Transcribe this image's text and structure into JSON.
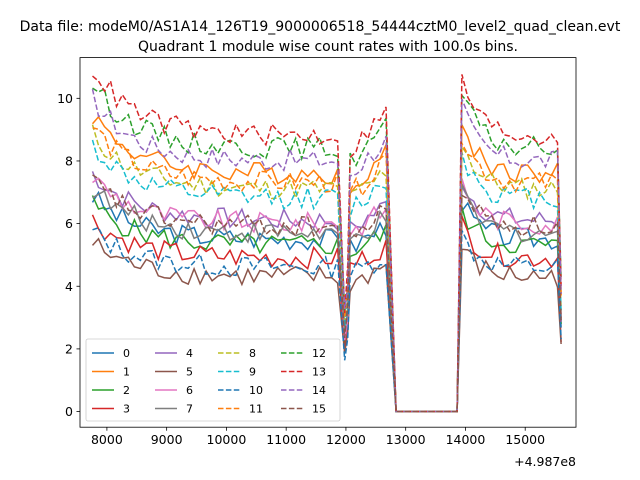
{
  "chart_data": {
    "type": "line",
    "suptitle": "Data file: modeM0/AS1A14_126T19_9000006518_54444cztM0_level2_quad_clean.evt",
    "title": "Quadrant 1 module wise count rates with 100.0s bins.",
    "xlabel": "",
    "ylabel": "",
    "x_offset_label": "+4.987e8",
    "xlim": [
      7550,
      15850
    ],
    "ylim": [
      -0.5,
      11.3
    ],
    "x_ticks": [
      8000,
      9000,
      10000,
      11000,
      12000,
      13000,
      14000,
      15000
    ],
    "y_ticks": [
      0,
      2,
      4,
      6,
      8,
      10
    ],
    "grid": false,
    "legend": {
      "position": "lower-left",
      "ncol": 4
    },
    "segments": [
      [
        7760,
        11940
      ],
      [
        12070,
        12760
      ],
      [
        12840,
        13860
      ],
      [
        13940,
        15580
      ]
    ],
    "series": [
      {
        "name": "0",
        "color": "#1f77b4",
        "style": "solid",
        "level": 5.5
      },
      {
        "name": "1",
        "color": "#ff7f0e",
        "style": "solid",
        "level": 7.6
      },
      {
        "name": "2",
        "color": "#2ca02c",
        "style": "solid",
        "level": 5.3
      },
      {
        "name": "3",
        "color": "#d62728",
        "style": "solid",
        "level": 4.9
      },
      {
        "name": "4",
        "color": "#9467bd",
        "style": "solid",
        "level": 6.1
      },
      {
        "name": "5",
        "color": "#8c564b",
        "style": "solid",
        "level": 4.3
      },
      {
        "name": "6",
        "color": "#e377c2",
        "style": "solid",
        "level": 6.0
      },
      {
        "name": "7",
        "color": "#7f7f7f",
        "style": "solid",
        "level": 5.7
      },
      {
        "name": "8",
        "color": "#bcbd22",
        "style": "dashed",
        "level": 7.1
      },
      {
        "name": "9",
        "color": "#17becf",
        "style": "dashed",
        "level": 6.8
      },
      {
        "name": "10",
        "color": "#1f77b4",
        "style": "dashed",
        "level": 4.6
      },
      {
        "name": "11",
        "color": "#ff7f0e",
        "style": "dashed",
        "level": 7.3
      },
      {
        "name": "12",
        "color": "#2ca02c",
        "style": "dashed",
        "level": 8.4
      },
      {
        "name": "13",
        "color": "#d62728",
        "style": "dashed",
        "level": 8.8
      },
      {
        "name": "14",
        "color": "#9467bd",
        "style": "dashed",
        "level": 8.0
      },
      {
        "name": "15",
        "color": "#8c564b",
        "style": "dashed",
        "level": 5.9
      }
    ]
  }
}
